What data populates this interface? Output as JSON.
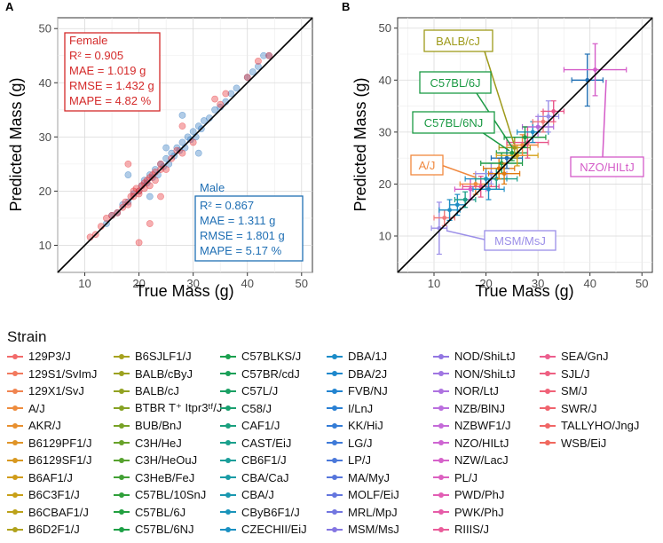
{
  "figure": {
    "panel_a_label": "A",
    "panel_b_label": "B",
    "legend_title": "Strain"
  },
  "chart_data": [
    {
      "panel": "A",
      "type": "scatter",
      "title": "",
      "xlabel": "True Mass (g)",
      "ylabel": "Predicted Mass (g)",
      "xlim": [
        5,
        52
      ],
      "ylim": [
        5,
        52
      ],
      "xticks": [
        10,
        20,
        30,
        40,
        50
      ],
      "yticks": [
        10,
        20,
        30,
        40,
        50
      ],
      "reference_line": "y = x",
      "colors": {
        "female": "#e8363c",
        "male": "#3b7fc4",
        "female_text": "#d42a2a",
        "male_text": "#1f6fb4"
      },
      "annotations": {
        "female": {
          "label": "Female",
          "r2": "R² = 0.905",
          "mae": "MAE = 1.019 g",
          "rmse": "RMSE = 1.432 g",
          "mape": "MAPE = 4.82 %"
        },
        "male": {
          "label": "Male",
          "r2": "R² = 0.867",
          "mae": "MAE = 1.311 g",
          "rmse": "RMSE = 1.801 g",
          "mape": "MAPE = 5.17 %"
        }
      },
      "series": [
        {
          "name": "Female",
          "x": [
            11,
            12,
            13,
            14,
            15,
            16,
            17,
            17.5,
            18,
            18.5,
            19,
            19,
            19.5,
            20,
            20,
            20.5,
            21,
            21,
            21.5,
            22,
            22,
            22.5,
            23,
            23,
            24,
            24,
            25,
            26,
            27,
            28,
            30,
            20,
            22,
            18,
            24,
            28,
            34,
            35,
            36,
            40,
            42,
            44
          ],
          "y": [
            11.5,
            12,
            13.5,
            15,
            15.5,
            16,
            17,
            18,
            17.5,
            19,
            20,
            19,
            20.5,
            20,
            19.5,
            21,
            21.5,
            20.5,
            22,
            21,
            22.5,
            23,
            22,
            23.5,
            24,
            25,
            24,
            26,
            27.5,
            27,
            29,
            10.5,
            14,
            25,
            19,
            32,
            37,
            36,
            38,
            41,
            44,
            45
          ]
        },
        {
          "name": "Male",
          "x": [
            14,
            15,
            16,
            17,
            18,
            19,
            20,
            20.5,
            21,
            21.5,
            22,
            22.5,
            23,
            23.5,
            24,
            24.5,
            25,
            25.5,
            26,
            26.5,
            27,
            27.5,
            28,
            28.5,
            29,
            29.5,
            30,
            30.5,
            31,
            31.5,
            32,
            33,
            34,
            35,
            36,
            37,
            38,
            40,
            41,
            42,
            43,
            44,
            18,
            22,
            25,
            28,
            31
          ],
          "y": [
            14,
            15.5,
            16,
            17.5,
            18,
            19.5,
            20,
            21,
            22,
            21.5,
            23,
            22.5,
            24,
            23,
            25,
            24.5,
            26,
            25,
            27,
            26.5,
            28,
            27.5,
            29,
            28,
            30,
            29.5,
            31,
            30,
            32,
            31.5,
            33,
            33.5,
            35,
            35.5,
            36.5,
            38,
            39,
            41,
            42,
            43,
            45,
            45,
            23,
            19,
            28,
            34,
            27
          ]
        }
      ]
    },
    {
      "panel": "B",
      "type": "scatter",
      "title": "",
      "xlabel": "True Mass (g)",
      "ylabel": "Predicted Mass (g)",
      "xlim": [
        3,
        52
      ],
      "ylim": [
        3,
        52
      ],
      "xticks": [
        10,
        20,
        30,
        40,
        50
      ],
      "yticks": [
        10,
        20,
        30,
        40,
        50
      ],
      "reference_line": "y = x",
      "callouts": [
        {
          "label": "BALB/cJ",
          "color": "#9e9a1a",
          "target": [
            25,
            27
          ]
        },
        {
          "label": "C57BL/6J",
          "color": "#1b9a44",
          "target": [
            25,
            26
          ]
        },
        {
          "label": "C57BL/6NJ",
          "color": "#1b9a44",
          "target": [
            25,
            25
          ]
        },
        {
          "label": "A/J",
          "color": "#f0883e",
          "target": [
            20,
            20
          ]
        },
        {
          "label": "NZO/HILtJ",
          "color": "#d45bc8",
          "target": [
            41,
            42
          ]
        },
        {
          "label": "MSM/MsJ",
          "color": "#9b8ee8",
          "target": [
            11,
            11.5
          ]
        }
      ],
      "points": [
        {
          "x": 11,
          "y": 11.5,
          "xerr": 1.5,
          "yerr": 5,
          "color": "#9b8ee8"
        },
        {
          "x": 12,
          "y": 13.5,
          "xerr": 2,
          "yerr": 1.5,
          "color": "#f07a7a"
        },
        {
          "x": 13,
          "y": 15,
          "xerr": 2,
          "yerr": 2,
          "color": "#1f8ec4"
        },
        {
          "x": 14.5,
          "y": 16,
          "xerr": 1.5,
          "yerr": 2,
          "color": "#1f8ec4"
        },
        {
          "x": 16,
          "y": 17,
          "xerr": 2,
          "yerr": 1.5,
          "color": "#1fa08a"
        },
        {
          "x": 17,
          "y": 19,
          "xerr": 3,
          "yerr": 2,
          "color": "#d45bc8"
        },
        {
          "x": 18,
          "y": 20,
          "xerr": 3,
          "yerr": 2,
          "color": "#f0883e"
        },
        {
          "x": 19,
          "y": 19.5,
          "xerr": 3.5,
          "yerr": 2,
          "color": "#e8558a"
        },
        {
          "x": 20,
          "y": 21,
          "xerr": 4,
          "yerr": 2,
          "color": "#1f8ec4"
        },
        {
          "x": 21,
          "y": 22,
          "xerr": 3,
          "yerr": 2,
          "color": "#9b8ee8"
        },
        {
          "x": 22,
          "y": 21,
          "xerr": 4,
          "yerr": 2,
          "color": "#1fa08a"
        },
        {
          "x": 22.5,
          "y": 23,
          "xerr": 3,
          "yerr": 2,
          "color": "#e07a10"
        },
        {
          "x": 23,
          "y": 24,
          "xerr": 4,
          "yerr": 2,
          "color": "#1b9a44"
        },
        {
          "x": 24,
          "y": 25,
          "xerr": 3,
          "yerr": 2,
          "color": "#1f6fb4"
        },
        {
          "x": 25,
          "y": 26,
          "xerr": 3,
          "yerr": 1.5,
          "color": "#1b9a44"
        },
        {
          "x": 25.5,
          "y": 27,
          "xerr": 3,
          "yerr": 2,
          "color": "#9e9a1a"
        },
        {
          "x": 26,
          "y": 25.5,
          "xerr": 4,
          "yerr": 2,
          "color": "#d4a017"
        },
        {
          "x": 27,
          "y": 27.5,
          "xerr": 3,
          "yerr": 2,
          "color": "#f0883e"
        },
        {
          "x": 28,
          "y": 28,
          "xerr": 4,
          "yerr": 3,
          "color": "#e8558a"
        },
        {
          "x": 29,
          "y": 30,
          "xerr": 3,
          "yerr": 2,
          "color": "#1f8ec4"
        },
        {
          "x": 30,
          "y": 31,
          "xerr": 3,
          "yerr": 2,
          "color": "#b46bd8"
        },
        {
          "x": 31,
          "y": 32,
          "xerr": 2,
          "yerr": 2,
          "color": "#f07a7a"
        },
        {
          "x": 32,
          "y": 33,
          "xerr": 2,
          "yerr": 3,
          "color": "#9b8ee8"
        },
        {
          "x": 33,
          "y": 34,
          "xerr": 2,
          "yerr": 2,
          "color": "#e8558a"
        },
        {
          "x": 20.5,
          "y": 19,
          "xerr": 3,
          "yerr": 2,
          "color": "#1f8ec4"
        },
        {
          "x": 23.5,
          "y": 22,
          "xerr": 3,
          "yerr": 2,
          "color": "#e07a10"
        },
        {
          "x": 27.5,
          "y": 29,
          "xerr": 4,
          "yerr": 2,
          "color": "#1b9a44"
        },
        {
          "x": 39.5,
          "y": 40,
          "xerr": 3,
          "yerr": 5,
          "color": "#1f6fb4"
        },
        {
          "x": 41,
          "y": 42,
          "xerr": 6,
          "yerr": 5,
          "color": "#d45bc8"
        }
      ]
    }
  ],
  "legend": {
    "columns": [
      [
        {
          "label": "129P3/J",
          "color": "#f26b6b"
        },
        {
          "label": "129S1/SvImJ",
          "color": "#f27a5e"
        },
        {
          "label": "129X1/SvJ",
          "color": "#f08450"
        },
        {
          "label": "A/J",
          "color": "#ee8c3e"
        },
        {
          "label": "AKR/J",
          "color": "#e89030"
        },
        {
          "label": "B6129PF1/J",
          "color": "#e09428"
        },
        {
          "label": "B6129SF1/J",
          "color": "#d89820"
        },
        {
          "label": "B6AF1/J",
          "color": "#d09c1a"
        },
        {
          "label": "B6C3F1/J",
          "color": "#c8a018"
        },
        {
          "label": "B6CBAF1/J",
          "color": "#bca21a"
        },
        {
          "label": "B6D2F1/J",
          "color": "#b0a21c"
        }
      ],
      [
        {
          "label": "B6SJLF1/J",
          "color": "#a6a21e"
        },
        {
          "label": "BALB/cByJ",
          "color": "#9ca220"
        },
        {
          "label": "BALB/cJ",
          "color": "#92a222"
        },
        {
          "label": "BTBR T⁺ Itpr3ᵗᶠ/J",
          "color": "#86a224"
        },
        {
          "label": "BUB/BnJ",
          "color": "#78a226"
        },
        {
          "label": "C3H/HeJ",
          "color": "#68a22a"
        },
        {
          "label": "C3H/HeOuJ",
          "color": "#56a22e"
        },
        {
          "label": "C3HeB/FeJ",
          "color": "#42a034"
        },
        {
          "label": "C57BL/10SnJ",
          "color": "#30a03a"
        },
        {
          "label": "C57BL/6J",
          "color": "#22a040"
        },
        {
          "label": "C57BL/6NJ",
          "color": "#1ca046"
        }
      ],
      [
        {
          "label": "C57BLKS/J",
          "color": "#1aa04e"
        },
        {
          "label": "C57BR/cdJ",
          "color": "#1aa058"
        },
        {
          "label": "C57L/J",
          "color": "#1aa064"
        },
        {
          "label": "C58/J",
          "color": "#1aa070"
        },
        {
          "label": "CAF1/J",
          "color": "#1aa07e"
        },
        {
          "label": "CAST/EiJ",
          "color": "#1aa08c"
        },
        {
          "label": "CB6F1/J",
          "color": "#1a9e9a"
        },
        {
          "label": "CBA/CaJ",
          "color": "#1a9ca6"
        },
        {
          "label": "CBA/J",
          "color": "#1a98b0"
        },
        {
          "label": "CByB6F1/J",
          "color": "#1a94ba"
        },
        {
          "label": "CZECHII/EiJ",
          "color": "#1a90c2"
        }
      ],
      [
        {
          "label": "DBA/1J",
          "color": "#1a8cc8"
        },
        {
          "label": "DBA/2J",
          "color": "#1e88cc"
        },
        {
          "label": "FVB/NJ",
          "color": "#2284d0"
        },
        {
          "label": "I/LnJ",
          "color": "#2a80d4"
        },
        {
          "label": "KK/HiJ",
          "color": "#347cd6"
        },
        {
          "label": "LG/J",
          "color": "#3e7ad8"
        },
        {
          "label": "LP/J",
          "color": "#4a78da"
        },
        {
          "label": "MA/MyJ",
          "color": "#5676dc"
        },
        {
          "label": "MOLF/EiJ",
          "color": "#6476de"
        },
        {
          "label": "MRL/MpJ",
          "color": "#7276e0"
        },
        {
          "label": "MSM/MsJ",
          "color": "#8476e2"
        }
      ],
      [
        {
          "label": "NOD/ShiLtJ",
          "color": "#9276e2"
        },
        {
          "label": "NON/ShiLtJ",
          "color": "#a076e2"
        },
        {
          "label": "NOR/LtJ",
          "color": "#ae72e0"
        },
        {
          "label": "NZB/BlNJ",
          "color": "#ba6ede"
        },
        {
          "label": "NZBWF1/J",
          "color": "#c46ad8"
        },
        {
          "label": "NZO/HILtJ",
          "color": "#ce66d2"
        },
        {
          "label": "NZW/LacJ",
          "color": "#d662ca"
        },
        {
          "label": "PL/J",
          "color": "#dc60c0"
        },
        {
          "label": "PWD/PhJ",
          "color": "#e25eb4"
        },
        {
          "label": "PWK/PhJ",
          "color": "#e65ca8"
        },
        {
          "label": "RIIIS/J",
          "color": "#ea5c9a"
        }
      ],
      [
        {
          "label": "SEA/GnJ",
          "color": "#ec5e8e"
        },
        {
          "label": "SJL/J",
          "color": "#ee6082"
        },
        {
          "label": "SM/J",
          "color": "#f06278"
        },
        {
          "label": "SWR/J",
          "color": "#f0646e"
        },
        {
          "label": "TALLYHO/JngJ",
          "color": "#f06666"
        },
        {
          "label": "WSB/EiJ",
          "color": "#f0685e"
        }
      ]
    ]
  }
}
